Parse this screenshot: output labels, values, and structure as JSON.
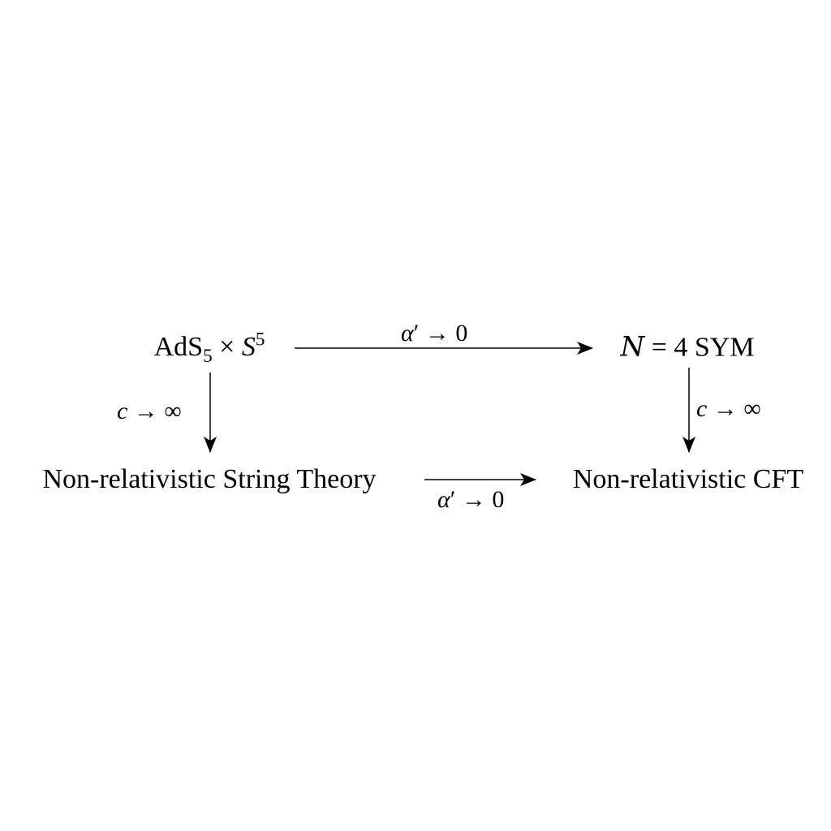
{
  "diagram": {
    "nodes": {
      "ads": {
        "base": "AdS",
        "sub": "5",
        "times": "×",
        "sphere": "S",
        "sup": "5"
      },
      "sym": {
        "cal_n": "N",
        "rest": " = 4 SYM"
      },
      "nrst": {
        "text": "Non-relativistic String Theory"
      },
      "nrcft": {
        "text": "Non-relativistic CFT"
      }
    },
    "edges": {
      "top": {
        "var": "α",
        "prime": "′",
        "rest": " → 0"
      },
      "bottom": {
        "var": "α",
        "prime": "′",
        "rest": " → 0"
      },
      "left": {
        "var": "c",
        "rest": " → ∞"
      },
      "right": {
        "var": "c",
        "rest": " → ∞"
      }
    }
  }
}
